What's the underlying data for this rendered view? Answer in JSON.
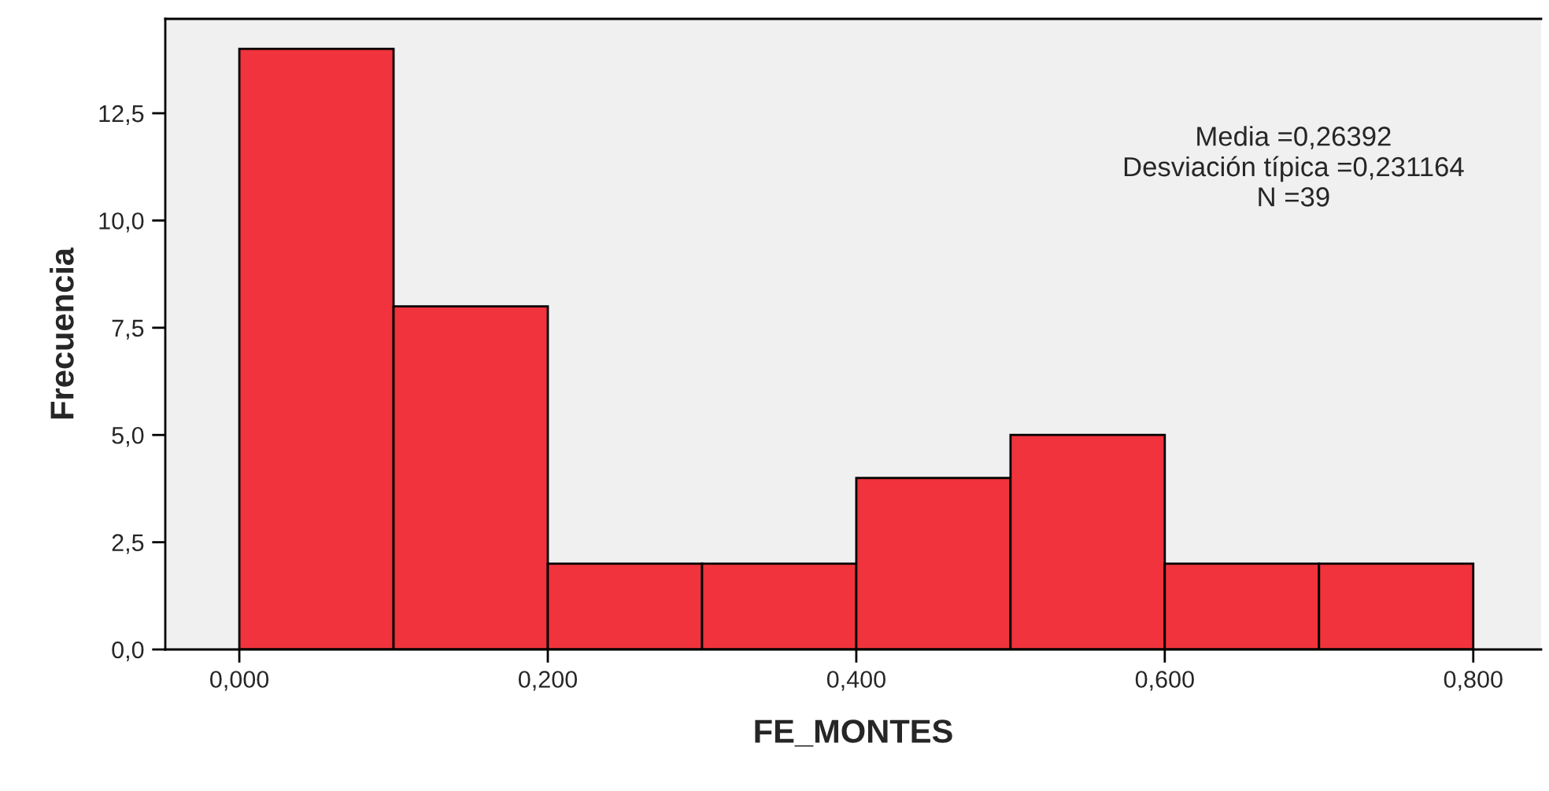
{
  "chart_data": {
    "type": "histogram",
    "xlabel": "FE_MONTES",
    "ylabel": "Frecuencia",
    "bins": [
      0,
      0.1,
      0.2,
      0.3,
      0.4,
      0.5,
      0.6,
      0.7,
      0.8
    ],
    "values": [
      14,
      8,
      2,
      2,
      4,
      5,
      2,
      2
    ],
    "color": "#f0333c",
    "xlim": [
      -0.048,
      0.844
    ],
    "ylim": [
      0,
      14.7
    ],
    "xticks": [
      {
        "value": 0,
        "label": "0,000"
      },
      {
        "value": 0.2,
        "label": "0,200"
      },
      {
        "value": 0.4,
        "label": "0,400"
      },
      {
        "value": 0.6,
        "label": "0,600"
      },
      {
        "value": 0.8,
        "label": "0,800"
      }
    ],
    "yticks": [
      {
        "value": 0,
        "label": "0,0"
      },
      {
        "value": 2.5,
        "label": "2,5"
      },
      {
        "value": 5,
        "label": "5,0"
      },
      {
        "value": 7.5,
        "label": "7,5"
      },
      {
        "value": 10,
        "label": "10,0"
      },
      {
        "value": 12.5,
        "label": "12,5"
      }
    ],
    "annotations": [
      "Media =0,26392",
      "Desviación típica =0,231164",
      "N =39"
    ],
    "grid": false,
    "legend": false
  }
}
